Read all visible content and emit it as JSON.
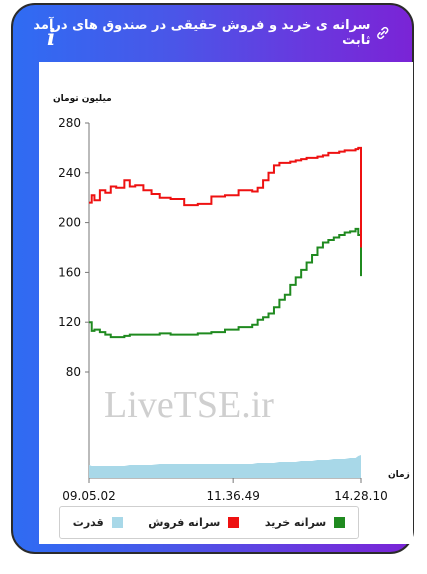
{
  "header": {
    "title": "سرانه ی خرید و فروش حقیقی در صندوق های درآمد ثابت",
    "info_symbol": "i"
  },
  "watermark": "LiveTSE.ir",
  "legend": {
    "items": [
      {
        "label": "سرانه خرید",
        "color": "#1f8a1f"
      },
      {
        "label": "سرانه فروش",
        "color": "#ee1111"
      },
      {
        "label": "قدرت",
        "color": "#a8d8e8"
      }
    ]
  },
  "chart_data": {
    "type": "line",
    "ylabel": "میلیون تومان",
    "xlabel": "زمان",
    "yticks": [
      80,
      120,
      160,
      200,
      240,
      280
    ],
    "ylim": [
      80,
      280
    ],
    "xticks": [
      "09.05.02",
      "11.36.49",
      "14.28.10"
    ],
    "x": [
      0,
      0.01,
      0.02,
      0.04,
      0.06,
      0.08,
      0.1,
      0.13,
      0.15,
      0.17,
      0.2,
      0.23,
      0.26,
      0.3,
      0.35,
      0.4,
      0.45,
      0.5,
      0.55,
      0.6,
      0.62,
      0.64,
      0.66,
      0.68,
      0.7,
      0.72,
      0.74,
      0.76,
      0.78,
      0.8,
      0.82,
      0.84,
      0.86,
      0.88,
      0.9,
      0.92,
      0.94,
      0.96,
      0.98,
      0.99,
      1.0
    ],
    "series": [
      {
        "name": "سرانه فروش",
        "color": "#ee1111",
        "values": [
          216,
          222,
          218,
          226,
          224,
          229,
          228,
          234,
          229,
          230,
          226,
          223,
          220,
          219,
          214,
          215,
          221,
          222,
          226,
          225,
          228,
          234,
          240,
          246,
          248,
          248,
          249,
          250,
          251,
          252,
          252,
          253,
          254,
          256,
          256,
          257,
          258,
          258,
          259,
          260,
          180
        ]
      },
      {
        "name": "سرانه خرید",
        "color": "#1f8a1f",
        "values": [
          120,
          113,
          114,
          112,
          110,
          108,
          108,
          109,
          110,
          110,
          110,
          110,
          111,
          110,
          110,
          111,
          112,
          114,
          116,
          118,
          122,
          124,
          127,
          132,
          138,
          142,
          150,
          156,
          162,
          168,
          174,
          180,
          184,
          186,
          188,
          190,
          192,
          193,
          195,
          190,
          157
        ]
      },
      {
        "name": "قدرت",
        "color": "#a8d8e8",
        "values": [
          13,
          12,
          12,
          12,
          12,
          12,
          12,
          12,
          13,
          13,
          13,
          13,
          14,
          14,
          14,
          14,
          14,
          14,
          14,
          14,
          15,
          15,
          15,
          15,
          16,
          16,
          16,
          16,
          17,
          17,
          17,
          18,
          18,
          18,
          19,
          19,
          19,
          20,
          20,
          22,
          23
        ]
      }
    ]
  }
}
